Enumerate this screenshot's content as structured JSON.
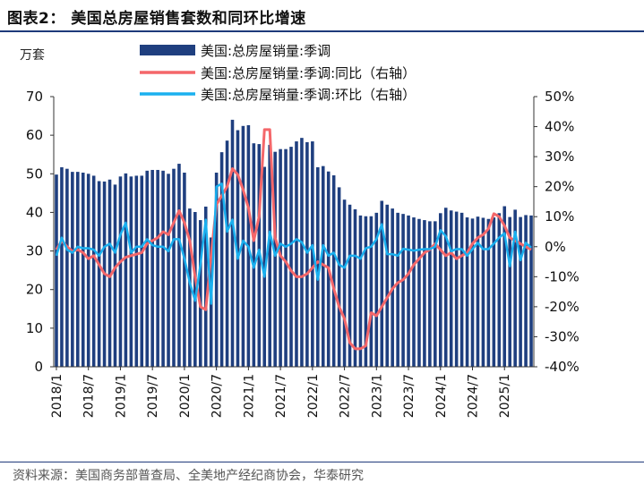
{
  "figure": {
    "title": "图表2：  美国总房屋销售套数和同环比增速",
    "source": "资料来源：美国商务部普查局、全美地产经纪商协会，华泰研究"
  },
  "chart_data": {
    "type": "bar-line-combo",
    "left_axis": {
      "label": "万套",
      "ylim": [
        0,
        70
      ],
      "ticks": [
        "0",
        "10",
        "20",
        "30",
        "40",
        "50",
        "60",
        "70"
      ]
    },
    "right_axis": {
      "ylim": [
        -40,
        50
      ],
      "ticks": [
        "-40%",
        "-30%",
        "-20%",
        "-10%",
        "0%",
        "10%",
        "20%",
        "30%",
        "40%",
        "50%"
      ]
    },
    "x_tick_labels": [
      "2018/1",
      "2018/7",
      "2019/1",
      "2019/7",
      "2020/1",
      "2020/7",
      "2021/1",
      "2021/7",
      "2022/1",
      "2022/7",
      "2023/1",
      "2023/7",
      "2024/1",
      "2024/7",
      "2025/1"
    ],
    "x_tick_indices": [
      0,
      6,
      12,
      18,
      24,
      30,
      36,
      42,
      48,
      54,
      60,
      66,
      72,
      78,
      84
    ],
    "legend_position": "top",
    "colors": {
      "bars": "#1f3f7f",
      "yoy": "#f4676a",
      "mom": "#1ab0ef",
      "axis": "#333333"
    },
    "series": [
      {
        "name": "美国:总房屋销量:季调",
        "type": "bar",
        "axis": "left",
        "values": [
          49.8,
          51.7,
          51.3,
          50.5,
          50.5,
          50.3,
          50.0,
          49.5,
          48.1,
          48.0,
          48.5,
          47.2,
          49.3,
          50.1,
          49.3,
          49.5,
          49.5,
          50.8,
          51.0,
          51.0,
          50.8,
          50.0,
          51.3,
          52.6,
          50.3,
          41.0,
          40.1,
          38.0,
          41.5,
          33.5,
          50.3,
          55.6,
          58.6,
          64.0,
          61.3,
          62.4,
          62.6,
          57.9,
          57.7,
          51.8,
          57.5,
          55.7,
          56.4,
          56.4,
          57.0,
          58.4,
          59.3,
          58.2,
          58.4,
          51.7,
          52.0,
          50.6,
          49.6,
          46.5,
          43.3,
          42.0,
          40.8,
          39.2,
          39.0,
          39.0,
          39.9,
          43.0,
          42.0,
          41.0,
          39.9,
          39.6,
          39.2,
          38.7,
          38.3,
          38.0,
          37.7,
          37.7,
          39.8,
          41.2,
          40.5,
          40.2,
          39.9,
          38.7,
          38.4,
          38.9,
          38.6,
          38.3,
          38.7,
          39.8,
          41.6,
          38.8,
          40.7,
          38.8,
          39.3,
          39.2
        ]
      },
      {
        "name": "美国:总房屋销量:季调:同比（右轴）",
        "type": "line",
        "axis": "right",
        "values": [
          -1.0,
          2.0,
          0.0,
          -1.5,
          -1.0,
          -2.0,
          -4.0,
          -3.0,
          -6.0,
          -9.0,
          -10.0,
          -7.0,
          -5.0,
          -3.5,
          -3.0,
          -2.5,
          -2.0,
          1.0,
          2.0,
          3.0,
          5.0,
          4.0,
          8.0,
          12.0,
          8.0,
          2.0,
          -10.0,
          -20.0,
          -21.0,
          -3.0,
          14.0,
          17.0,
          20.0,
          26.0,
          24.0,
          19.0,
          13.0,
          2.0,
          10.0,
          39.0,
          39.0,
          3.0,
          -3.0,
          -5.0,
          -8.0,
          -10.0,
          -10.0,
          -9.0,
          -7.0,
          -5.0,
          -6.0,
          -7.0,
          -14.0,
          -20.0,
          -24.0,
          -32.0,
          -34.0,
          -34.0,
          -33.0,
          -22.0,
          -23.0,
          -20.0,
          -17.0,
          -14.0,
          -12.0,
          -11.0,
          -9.0,
          -6.0,
          -4.0,
          -2.0,
          -1.0,
          1.0,
          -1.0,
          -3.0,
          -2.0,
          -4.0,
          -3.0,
          -2.0,
          1.0,
          3.0,
          4.0,
          6.0,
          11.0,
          10.0,
          7.0,
          3.0,
          2.0,
          1.0,
          0.0,
          -1.0
        ]
      },
      {
        "name": "美国:总房屋销量:季调:环比（右轴）",
        "type": "line",
        "axis": "right",
        "values": [
          -3.0,
          3.0,
          -1.0,
          -2.0,
          0.0,
          -0.5,
          -0.5,
          -1.0,
          -3.0,
          0.0,
          1.0,
          -2.0,
          4.0,
          8.0,
          -2.0,
          0.0,
          0.0,
          2.5,
          0.5,
          0.0,
          0.0,
          -1.5,
          2.5,
          2.5,
          -4.0,
          -12.0,
          -18.0,
          -6.0,
          9.0,
          -19.0,
          20.0,
          21.0,
          5.0,
          9.0,
          -4.0,
          2.0,
          0.0,
          -7.0,
          -1.0,
          -10.0,
          5.0,
          -3.0,
          1.0,
          0.0,
          1.0,
          2.5,
          1.5,
          -2.0,
          0.5,
          -11.0,
          0.5,
          -3.0,
          -2.0,
          -6.0,
          -7.0,
          -3.0,
          -3.0,
          -4.0,
          -0.5,
          0.0,
          2.5,
          7.5,
          -2.5,
          -2.5,
          -3.0,
          -0.7,
          -1.0,
          -1.3,
          -1.0,
          -0.8,
          -0.8,
          0.0,
          5.5,
          3.5,
          -1.5,
          -0.8,
          -0.8,
          -3.0,
          -0.8,
          1.3,
          -0.8,
          -0.8,
          1.0,
          3.0,
          4.5,
          -6.5,
          5.0,
          -4.5,
          1.3,
          -0.3
        ]
      }
    ]
  }
}
